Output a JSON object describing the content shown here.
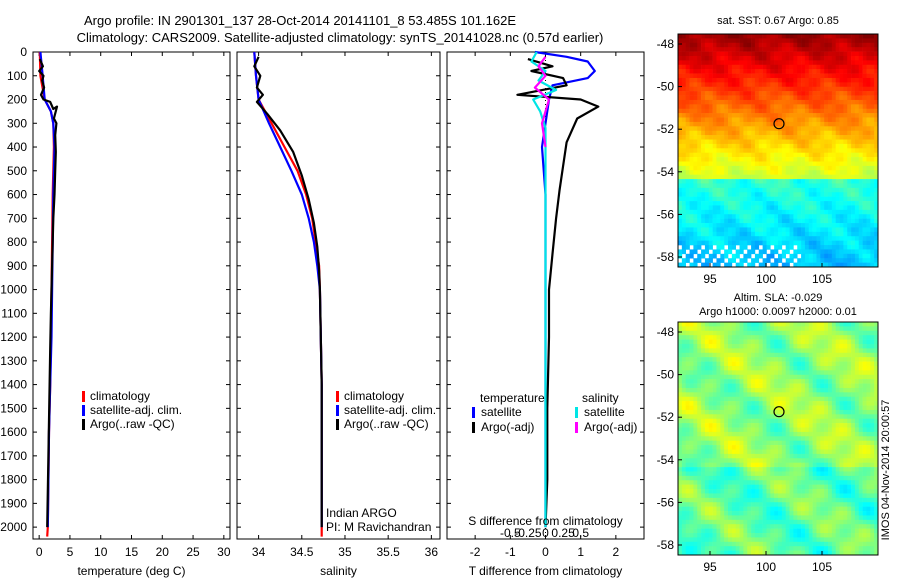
{
  "header": {
    "line1": "Argo profile: IN 2901301_137 28-Oct-2014 20141101_8 53.485S 101.162E",
    "line2": "Climatology: CARS2009. Satellite-adjusted climatology: synTS_20141028.nc (0.57d earlier)"
  },
  "chart_data": [
    {
      "type": "line",
      "name": "temperature",
      "xlabel": "temperature (deg C)",
      "xlim": [
        -1,
        31
      ],
      "ylim": [
        0,
        2050
      ],
      "xticks": [
        0,
        5,
        10,
        15,
        20,
        25,
        30
      ],
      "yticks": [
        0,
        100,
        200,
        300,
        400,
        500,
        600,
        700,
        800,
        900,
        1000,
        1100,
        1200,
        1300,
        1400,
        1500,
        1600,
        1700,
        1800,
        1900,
        2000
      ],
      "legend": [
        "climatology",
        "satellite-adj. clim.",
        "Argo(..raw -QC)"
      ],
      "series": [
        {
          "name": "climatology",
          "color": "#ff0000",
          "points": [
            [
              0.1,
              0
            ],
            [
              0.2,
              100
            ],
            [
              0.9,
              200
            ],
            [
              1.9,
              250
            ],
            [
              2.3,
              300
            ],
            [
              2.4,
              400
            ],
            [
              2.2,
              600
            ],
            [
              2.1,
              800
            ],
            [
              2.0,
              1000
            ],
            [
              1.9,
              1200
            ],
            [
              1.8,
              1400
            ],
            [
              1.6,
              1600
            ],
            [
              1.5,
              1800
            ],
            [
              1.4,
              2000
            ],
            [
              1.3,
              2040
            ]
          ]
        },
        {
          "name": "satellite-adj. clim.",
          "color": "#0000ff",
          "points": [
            [
              0.2,
              0
            ],
            [
              0.5,
              80
            ],
            [
              0.9,
              200
            ],
            [
              1.9,
              250
            ],
            [
              2.3,
              300
            ],
            [
              2.5,
              400
            ],
            [
              2.3,
              600
            ],
            [
              2.2,
              800
            ],
            [
              2.1,
              1000
            ],
            [
              2.0,
              1200
            ],
            [
              1.8,
              1400
            ],
            [
              1.6,
              1600
            ],
            [
              1.5,
              1800
            ],
            [
              1.4,
              2000
            ]
          ]
        },
        {
          "name": "Argo(..raw -QC)",
          "color": "#000000",
          "points": [
            [
              0.1,
              30
            ],
            [
              0.6,
              60
            ],
            [
              0.0,
              80
            ],
            [
              0.7,
              100
            ],
            [
              0.5,
              120
            ],
            [
              0.8,
              150
            ],
            [
              0.3,
              180
            ],
            [
              0.7,
              200
            ],
            [
              1.8,
              210
            ],
            [
              2.3,
              240
            ],
            [
              2.9,
              230
            ],
            [
              2.4,
              280
            ],
            [
              2.8,
              300
            ],
            [
              2.6,
              350
            ],
            [
              2.7,
              420
            ],
            [
              2.6,
              500
            ],
            [
              2.5,
              600
            ],
            [
              2.3,
              700
            ],
            [
              2.2,
              800
            ],
            [
              2.1,
              900
            ],
            [
              2.0,
              1000
            ],
            [
              1.9,
              1100
            ],
            [
              1.8,
              1250
            ],
            [
              1.7,
              1400
            ],
            [
              1.6,
              1550
            ],
            [
              1.5,
              1700
            ],
            [
              1.4,
              1850
            ],
            [
              1.3,
              2000
            ]
          ]
        }
      ]
    },
    {
      "type": "line",
      "name": "salinity",
      "xlabel": "salinity",
      "xlim": [
        33.75,
        36.1
      ],
      "ylim": [
        0,
        2050
      ],
      "xticks": [
        34,
        34.5,
        35,
        35.5,
        36
      ],
      "legend": [
        "climatology",
        "satellite-adj. clim.",
        "Argo(..raw -QC)"
      ],
      "annotation": [
        "Indian ARGO",
        "PI: M Ravichandran"
      ],
      "series": [
        {
          "name": "climatology",
          "color": "#ff0000",
          "points": [
            [
              33.95,
              0
            ],
            [
              33.97,
              100
            ],
            [
              34.0,
              200
            ],
            [
              34.15,
              300
            ],
            [
              34.3,
              400
            ],
            [
              34.45,
              500
            ],
            [
              34.55,
              600
            ],
            [
              34.62,
              700
            ],
            [
              34.66,
              800
            ],
            [
              34.7,
              900
            ],
            [
              34.71,
              1000
            ],
            [
              34.72,
              1200
            ],
            [
              34.73,
              1400
            ],
            [
              34.73,
              1600
            ],
            [
              34.73,
              1800
            ],
            [
              34.73,
              2040
            ]
          ]
        },
        {
          "name": "satellite-adj. clim.",
          "color": "#0000ff",
          "points": [
            [
              33.95,
              0
            ],
            [
              33.97,
              100
            ],
            [
              34.0,
              200
            ],
            [
              34.12,
              300
            ],
            [
              34.25,
              400
            ],
            [
              34.38,
              500
            ],
            [
              34.5,
              600
            ],
            [
              34.58,
              700
            ],
            [
              34.64,
              800
            ],
            [
              34.68,
              900
            ],
            [
              34.71,
              1000
            ],
            [
              34.72,
              1200
            ],
            [
              34.73,
              1400
            ],
            [
              34.73,
              1600
            ],
            [
              34.73,
              1800
            ],
            [
              34.73,
              2000
            ]
          ]
        },
        {
          "name": "Argo(..raw -QC)",
          "color": "#000000",
          "points": [
            [
              34.0,
              20
            ],
            [
              33.95,
              60
            ],
            [
              34.02,
              100
            ],
            [
              33.98,
              150
            ],
            [
              34.05,
              180
            ],
            [
              33.98,
              210
            ],
            [
              34.1,
              260
            ],
            [
              34.25,
              330
            ],
            [
              34.4,
              420
            ],
            [
              34.5,
              520
            ],
            [
              34.58,
              620
            ],
            [
              34.64,
              720
            ],
            [
              34.68,
              820
            ],
            [
              34.7,
              920
            ],
            [
              34.71,
              1000
            ],
            [
              34.72,
              1200
            ],
            [
              34.73,
              1400
            ],
            [
              34.73,
              1600
            ],
            [
              34.73,
              1800
            ],
            [
              34.73,
              2000
            ]
          ]
        }
      ]
    },
    {
      "type": "line",
      "name": "difference",
      "xlabel": "T difference from climatology",
      "xlabel_top": "S difference from climatology",
      "xlim": [
        -2.8,
        2.8
      ],
      "ylim": [
        0,
        2050
      ],
      "xticks": [
        -2,
        -1,
        0,
        1,
        2
      ],
      "xticklabels_top": [
        "-0.5",
        "-0.25",
        "0",
        "0.25",
        "0.5"
      ],
      "legend_headers": [
        "temperature",
        "salinity"
      ],
      "legend": [
        "satellite",
        "Argo(-adj)",
        "satellite",
        "Argo(-adj)"
      ],
      "series": [
        {
          "name": "T satellite",
          "color": "#0000ff",
          "points": [
            [
              -0.3,
              0
            ],
            [
              0.6,
              20
            ],
            [
              1.2,
              40
            ],
            [
              1.4,
              80
            ],
            [
              1.2,
              110
            ],
            [
              0.2,
              140
            ],
            [
              0.1,
              200
            ],
            [
              0.0,
              300
            ],
            [
              -0.1,
              400
            ],
            [
              0.0,
              600
            ],
            [
              0.0,
              900
            ],
            [
              0.0,
              1200
            ],
            [
              0.0,
              1500
            ],
            [
              0.0,
              1800
            ],
            [
              0.0,
              2000
            ]
          ]
        },
        {
          "name": "T Argo(-adj)",
          "color": "#000000",
          "points": [
            [
              -0.5,
              30
            ],
            [
              0.2,
              60
            ],
            [
              -0.4,
              80
            ],
            [
              0.5,
              110
            ],
            [
              0.6,
              140
            ],
            [
              -0.8,
              180
            ],
            [
              1.0,
              200
            ],
            [
              1.5,
              230
            ],
            [
              0.9,
              280
            ],
            [
              0.6,
              380
            ],
            [
              0.5,
              480
            ],
            [
              0.4,
              580
            ],
            [
              0.3,
              700
            ],
            [
              0.2,
              850
            ],
            [
              0.1,
              1000
            ],
            [
              0.1,
              1200
            ],
            [
              0.05,
              1500
            ],
            [
              0.05,
              1800
            ],
            [
              0.0,
              2000
            ]
          ]
        },
        {
          "name": "S satellite",
          "color": "#00e5e5",
          "points": [
            [
              -0.25,
              0
            ],
            [
              -0.4,
              40
            ],
            [
              0.0,
              80
            ],
            [
              -0.2,
              120
            ],
            [
              0.3,
              160
            ],
            [
              -0.35,
              200
            ],
            [
              -0.15,
              250
            ],
            [
              0.0,
              320
            ],
            [
              0.0,
              450
            ],
            [
              0.0,
              800
            ],
            [
              0.0,
              1200
            ],
            [
              0.0,
              1600
            ],
            [
              0.0,
              2000
            ]
          ]
        },
        {
          "name": "S Argo(-adj)",
          "color": "#ff00ff",
          "points": [
            [
              0.0,
              20
            ],
            [
              -0.2,
              60
            ],
            [
              0.0,
              100
            ],
            [
              -0.3,
              150
            ],
            [
              0.1,
              200
            ],
            [
              -0.1,
              300
            ],
            [
              0.0,
              400
            ]
          ]
        }
      ]
    }
  ],
  "maps": {
    "top": {
      "title": "sat. SST: 0.67 Argo: 0.85",
      "yticks": [
        "-48",
        "-50",
        "-52",
        "-54",
        "-56",
        "-58"
      ],
      "xticks": [
        "95",
        "100",
        "105"
      ]
    },
    "bottom": {
      "title1": "Altim. SLA: -0.029",
      "title2": "Argo h1000: 0.0097 h2000: 0.01",
      "yticks": [
        "-48",
        "-50",
        "-52",
        "-54",
        "-56",
        "-58"
      ],
      "xticks": [
        "95",
        "100",
        "105"
      ]
    },
    "stamp": "IMOS 04-Nov-2014 20:00:57"
  }
}
